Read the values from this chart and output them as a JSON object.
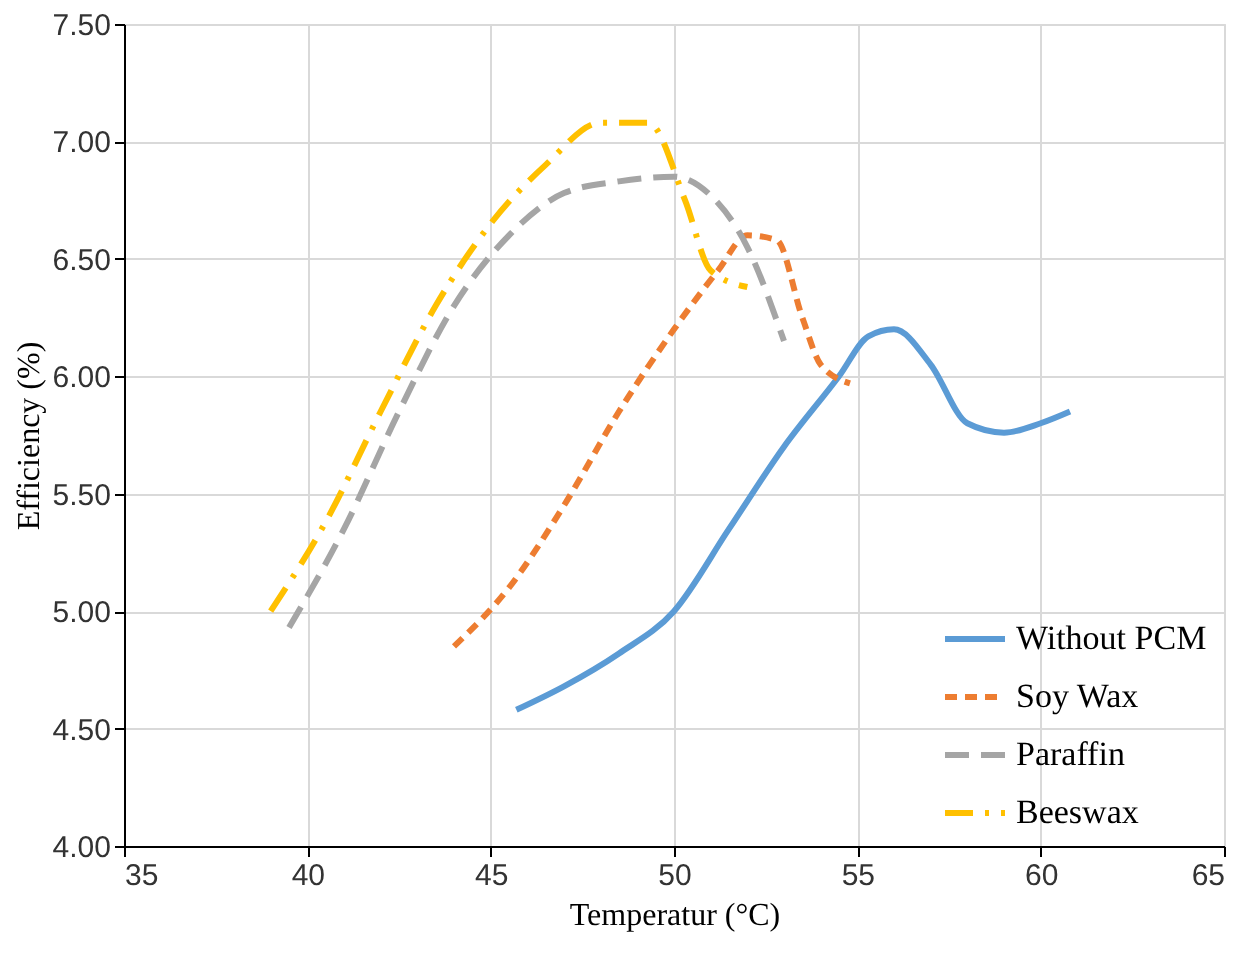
{
  "chart_data": {
    "type": "line",
    "xlabel": "Temperatur (°C)",
    "ylabel": "Efficiency (%)",
    "xlim": [
      35,
      65
    ],
    "xticks": [
      35,
      40,
      45,
      50,
      55,
      60,
      65
    ],
    "ylim": [
      4.0,
      7.5
    ],
    "yticks": [
      {
        "value": 4.0,
        "label": "4.00"
      },
      {
        "value": 4.5,
        "label": "4.50"
      },
      {
        "value": 5.0,
        "label": "5.00"
      },
      {
        "value": 5.5,
        "label": "5.50"
      },
      {
        "value": 6.0,
        "label": "6.00"
      },
      {
        "value": 6.5,
        "label": "6.50"
      },
      {
        "value": 7.0,
        "label": "7.00"
      },
      {
        "value": 7.5,
        "label": "7.50"
      }
    ],
    "grid": true,
    "legend": "bottom right",
    "marker": "none",
    "series": [
      {
        "name": "Without PCM",
        "color": "#5b9bd5",
        "line_style": "solid",
        "x": [
          45.7,
          47,
          48.5,
          50,
          51.5,
          53,
          54.5,
          55.3,
          56,
          57,
          58,
          59,
          60,
          60.8
        ],
        "values": [
          4.58,
          4.68,
          4.82,
          5.0,
          5.35,
          5.7,
          6.0,
          6.17,
          6.2,
          6.05,
          5.8,
          5.76,
          5.8,
          5.85
        ]
      },
      {
        "name": "Soy Wax",
        "color": "#ed7d31",
        "line_style": "dotted",
        "x": [
          44,
          45.5,
          47,
          48.5,
          50,
          51.2,
          52,
          52.8,
          53.5,
          54,
          54.8
        ],
        "values": [
          4.85,
          5.1,
          5.45,
          5.85,
          6.2,
          6.45,
          6.6,
          6.58,
          6.25,
          6.05,
          5.97
        ]
      },
      {
        "name": "Paraffin",
        "color": "#a5a5a5",
        "line_style": "dashed",
        "x": [
          39.5,
          41,
          42.5,
          44,
          45.5,
          47,
          48.5,
          50,
          51,
          52,
          53
        ],
        "values": [
          4.93,
          5.35,
          5.85,
          6.3,
          6.6,
          6.78,
          6.83,
          6.85,
          6.77,
          6.55,
          6.15
        ]
      },
      {
        "name": "Beeswax",
        "color": "#ffc000",
        "line_style": "dashdot",
        "x": [
          39,
          40.5,
          42,
          43.5,
          45,
          46.5,
          48,
          49.3,
          50.3,
          51,
          52
        ],
        "values": [
          5.0,
          5.38,
          5.85,
          6.3,
          6.65,
          6.9,
          7.08,
          7.08,
          6.75,
          6.45,
          6.38
        ]
      }
    ]
  }
}
